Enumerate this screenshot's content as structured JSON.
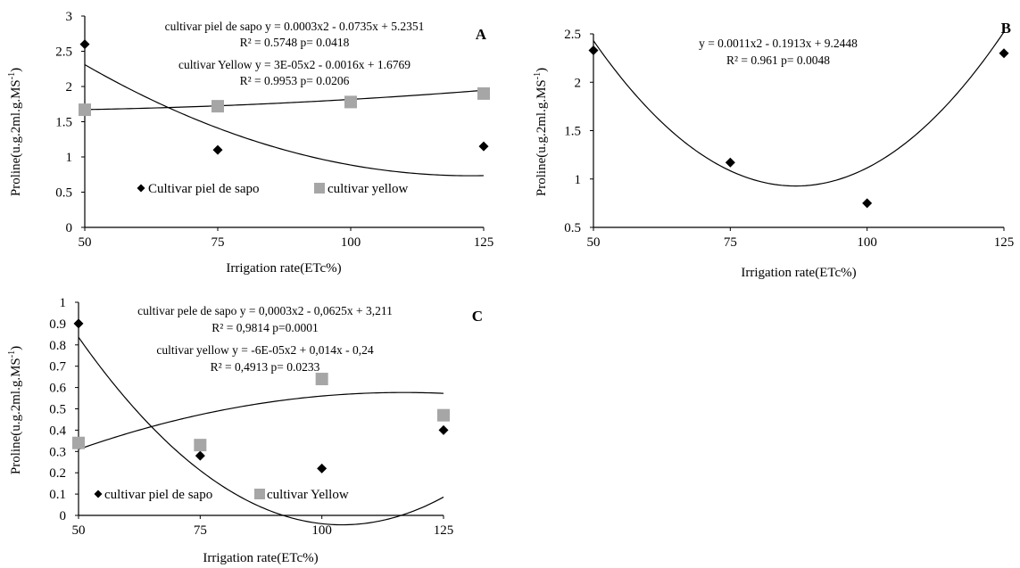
{
  "colors": {
    "piel_de_sapo_marker": "#000000",
    "yellow_marker": "#a6a6a6",
    "axis": "#000000",
    "trendline": "#000000"
  },
  "chart_data": [
    {
      "panel_label": "A",
      "type": "scatter",
      "xlabel": "Irrigation rate(ETc%)",
      "ylabel_main": "Proline(u.g.2ml.g.MS",
      "ylabel_sup": "-1",
      "ylabel_tail": ")",
      "xlim": [
        50,
        125
      ],
      "ylim": [
        0,
        3
      ],
      "xticks": [
        50,
        75,
        100,
        125
      ],
      "yticks": [
        0,
        0.5,
        1,
        1.5,
        2,
        2.5,
        3
      ],
      "legend": [
        "Cultivar piel de sapo",
        "cultivar yellow"
      ],
      "equations": [
        "cultivar piel de sapo y = 0.0003x2 - 0.0735x + 5.2351",
        "R² = 0.5748 p= 0.0418",
        "cultivar Yellow y = 3E-05x2 - 0.0016x + 1.6769",
        "R² = 0.9953 p= 0.0206"
      ],
      "series": [
        {
          "marker": "diamond",
          "x": [
            50,
            75,
            125
          ],
          "y": [
            2.6,
            1.1,
            1.15
          ],
          "trend": [
            0.0003,
            -0.0735,
            5.2351
          ]
        },
        {
          "marker": "square",
          "x": [
            50,
            75,
            100,
            125
          ],
          "y": [
            1.67,
            1.72,
            1.78,
            1.9
          ],
          "trend": [
            3e-05,
            -0.0016,
            1.6769
          ]
        }
      ]
    },
    {
      "panel_label": "B",
      "type": "scatter",
      "xlabel": "Irrigation rate(ETc%)",
      "ylabel_main": "Proline(u.g.2ml.g.MS",
      "ylabel_sup": "-1",
      "ylabel_tail": ")",
      "xlim": [
        50,
        125
      ],
      "ylim": [
        0.5,
        2.5
      ],
      "xticks": [
        50,
        75,
        100,
        125
      ],
      "yticks": [
        0.5,
        1,
        1.5,
        2,
        2.5
      ],
      "legend": [],
      "equations": [
        "y = 0.0011x2 - 0.1913x + 9.2448",
        "R² = 0.961  p= 0.0048"
      ],
      "series": [
        {
          "marker": "diamond",
          "x": [
            50,
            75,
            100,
            125
          ],
          "y": [
            2.33,
            1.17,
            0.75,
            2.3
          ],
          "trend": [
            0.0011,
            -0.1913,
            9.2448
          ]
        }
      ]
    },
    {
      "panel_label": "C",
      "type": "scatter",
      "xlabel": "Irrigation rate(ETc%)",
      "ylabel_main": "Proline(u.g.2ml.g.MS",
      "ylabel_sup": "-1",
      "ylabel_tail": ")",
      "xlim": [
        50,
        125
      ],
      "ylim": [
        0,
        1
      ],
      "xticks": [
        50,
        75,
        100,
        125
      ],
      "yticks": [
        0,
        0.1,
        0.2,
        0.3,
        0.4,
        0.5,
        0.6,
        0.7,
        0.8,
        0.9,
        1
      ],
      "legend": [
        "cultivar piel de sapo",
        "cultivar Yellow"
      ],
      "equations": [
        "cultivar pele de sapo y = 0,0003x2 - 0,0625x + 3,211",
        "R² = 0,9814 p=0.0001",
        "cultivar yellow y = -6E-05x2 + 0,014x - 0,24",
        "R² = 0,4913 p= 0.0233"
      ],
      "series": [
        {
          "marker": "diamond",
          "x": [
            50,
            75,
            100,
            125
          ],
          "y": [
            0.9,
            0.28,
            0.22,
            0.4
          ],
          "trend": [
            0.0003,
            -0.0625,
            3.211
          ]
        },
        {
          "marker": "square",
          "x": [
            50,
            75,
            100,
            125
          ],
          "y": [
            0.34,
            0.33,
            0.64,
            0.47
          ],
          "trend": [
            -6e-05,
            0.014,
            -0.24
          ]
        }
      ]
    }
  ]
}
